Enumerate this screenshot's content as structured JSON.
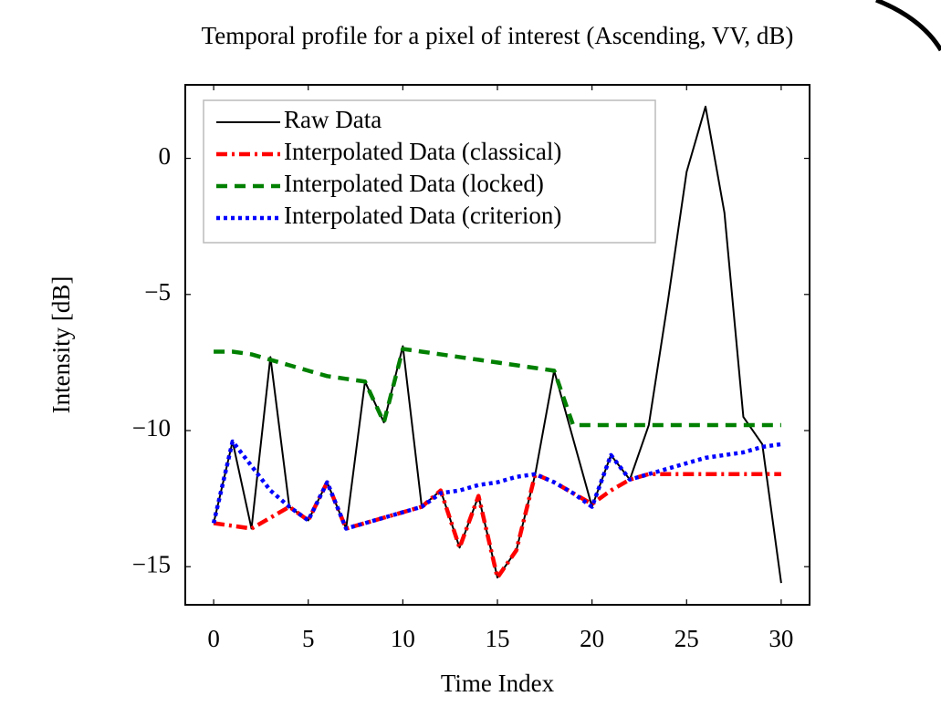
{
  "chart_data": {
    "type": "line",
    "title": "Temporal profile for a pixel of interest (Ascending, VV, dB)",
    "xlabel": "Time Index",
    "ylabel": "Intensity [dB]",
    "x": [
      0,
      1,
      2,
      3,
      4,
      5,
      6,
      7,
      8,
      9,
      10,
      11,
      12,
      13,
      14,
      15,
      16,
      17,
      18,
      19,
      20,
      21,
      22,
      23,
      24,
      25,
      26,
      27,
      28,
      29,
      30
    ],
    "xlim": [
      -1.5,
      31.5
    ],
    "xticks": [
      0,
      5,
      10,
      15,
      20,
      25,
      30
    ],
    "ylim": [
      -16.4,
      2.7
    ],
    "yticks": [
      {
        "value": -15,
        "label": "−15"
      },
      {
        "value": -10,
        "label": "−10"
      },
      {
        "value": -5,
        "label": "−5"
      },
      0
    ],
    "legend": "upper left",
    "series": [
      {
        "name": "Raw Data",
        "color": "#000000",
        "linestyle": "solid",
        "values": [
          -13.4,
          -10.4,
          -13.6,
          -7.3,
          -12.8,
          -13.3,
          -11.9,
          -13.6,
          -8.2,
          -9.7,
          -6.9,
          -12.8,
          -12.2,
          -14.3,
          -12.4,
          -15.4,
          -14.4,
          -11.6,
          -7.8,
          -10.3,
          -12.8,
          -10.9,
          -11.8,
          -9.8,
          -5.3,
          -0.5,
          1.9,
          -2.0,
          -9.5,
          -10.5,
          -15.6
        ]
      },
      {
        "name": "Interpolated Data (classical)",
        "color": "#ff0000",
        "linestyle": "dashdot",
        "values": [
          -13.4,
          -13.5,
          -13.6,
          -13.2,
          -12.8,
          -13.3,
          -11.9,
          -13.6,
          -13.4,
          -13.2,
          -13.0,
          -12.8,
          -12.2,
          -14.3,
          -12.4,
          -15.4,
          -14.4,
          -11.6,
          -11.9,
          -12.3,
          -12.7,
          -12.2,
          -11.8,
          -11.6,
          -11.6,
          -11.6,
          -11.6,
          -11.6,
          -11.6,
          -11.6,
          -11.6
        ]
      },
      {
        "name": "Interpolated Data (locked)",
        "color": "#008000",
        "linestyle": "dashed",
        "values": [
          -7.1,
          -7.1,
          -7.2,
          -7.4,
          -7.6,
          -7.8,
          -8.0,
          -8.1,
          -8.2,
          -9.7,
          -7.0,
          -7.1,
          -7.2,
          -7.3,
          -7.4,
          -7.5,
          -7.6,
          -7.7,
          -7.8,
          -9.8,
          -9.8,
          -9.8,
          -9.8,
          -9.8,
          -9.8,
          -9.8,
          -9.8,
          -9.8,
          -9.8,
          -9.8,
          -9.8
        ]
      },
      {
        "name": "Interpolated Data (criterion)",
        "color": "#0000ff",
        "linestyle": "dotted",
        "values": [
          -13.4,
          -10.4,
          -11.3,
          -12.2,
          -12.8,
          -13.3,
          -11.9,
          -13.6,
          -13.4,
          -13.2,
          -13.0,
          -12.8,
          -12.3,
          -12.2,
          -12.0,
          -11.9,
          -11.7,
          -11.6,
          -11.9,
          -12.3,
          -12.8,
          -10.9,
          -11.8,
          -11.6,
          -11.4,
          -11.2,
          -11.0,
          -10.9,
          -10.8,
          -10.6,
          -10.5
        ]
      }
    ]
  }
}
